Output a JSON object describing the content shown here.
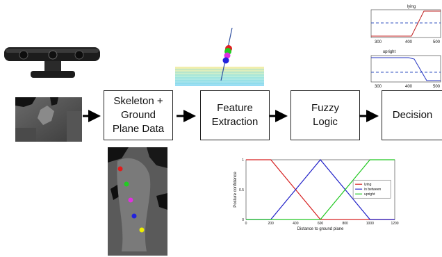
{
  "pipeline": {
    "steps": [
      {
        "label": "Skeleton + Ground Plane Data"
      },
      {
        "label": "Feature Extraction"
      },
      {
        "label": "Fuzzy Logic"
      },
      {
        "label": "Decision"
      }
    ]
  },
  "mini_plots": [
    {
      "title": "lying",
      "ticks": [
        "300",
        "400",
        "500"
      ]
    },
    {
      "title": "upright",
      "ticks": [
        "300",
        "400",
        "500"
      ]
    }
  ],
  "joint_colors": [
    "#e21b1b",
    "#22cc22",
    "#e030e0",
    "#2222dd",
    "#eeee00"
  ],
  "chart_data": {
    "type": "line",
    "xlabel": "Distance to ground plane",
    "ylabel": "Posture confidence",
    "xlim": [
      0,
      1200
    ],
    "ylim": [
      0,
      1
    ],
    "x_ticks": [
      "0",
      "200",
      "400",
      "600",
      "800",
      "1000",
      "1200"
    ],
    "y_ticks": [
      "0",
      "0.5",
      "1"
    ],
    "legend_position": "center-right",
    "series": [
      {
        "name": "lying",
        "color": "#d62020",
        "x": [
          0,
          200,
          600,
          1200
        ],
        "y": [
          1,
          1,
          0,
          0
        ]
      },
      {
        "name": "in between",
        "color": "#2020c8",
        "x": [
          0,
          200,
          600,
          1000,
          1200
        ],
        "y": [
          0,
          0,
          1,
          0,
          0
        ]
      },
      {
        "name": "upright",
        "color": "#20c820",
        "x": [
          0,
          600,
          1000,
          1200
        ],
        "y": [
          0,
          0,
          1,
          1
        ]
      }
    ]
  }
}
